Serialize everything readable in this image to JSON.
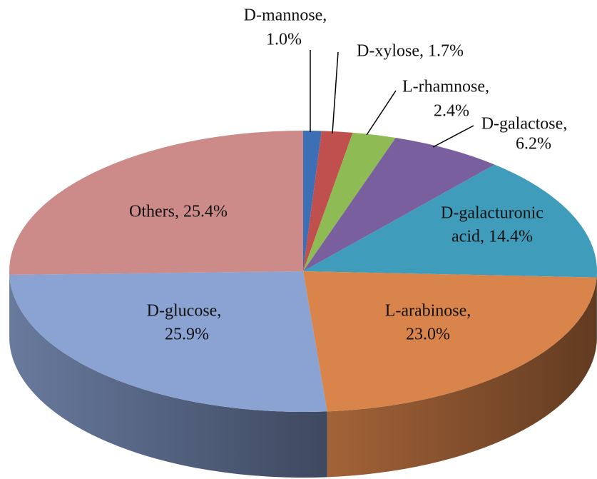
{
  "chart_data": {
    "type": "pie3d",
    "values": [
      1.0,
      1.7,
      2.4,
      6.2,
      14.4,
      23.0,
      25.9,
      25.4
    ],
    "value_labels": [
      [
        "D-mannose,",
        "1.0%"
      ],
      [
        "D-xylose, 1.7%"
      ],
      [
        "L-rhamnose,",
        "2.4%"
      ],
      [
        "D-galactose,",
        "6.2%"
      ],
      [
        "D-galacturonic",
        "acid, 14.4%"
      ],
      [
        "L-arabinose,",
        "23.0%"
      ],
      [
        "D-glucose,",
        "25.9%"
      ],
      [
        "Others, 25.4%"
      ]
    ],
    "colors": [
      "#3d6fb6",
      "#c0504d",
      "#8fbb55",
      "#7a5f9e",
      "#3f9dbb",
      "#d9844a",
      "#8aa3d2",
      "#cc8a89"
    ]
  }
}
